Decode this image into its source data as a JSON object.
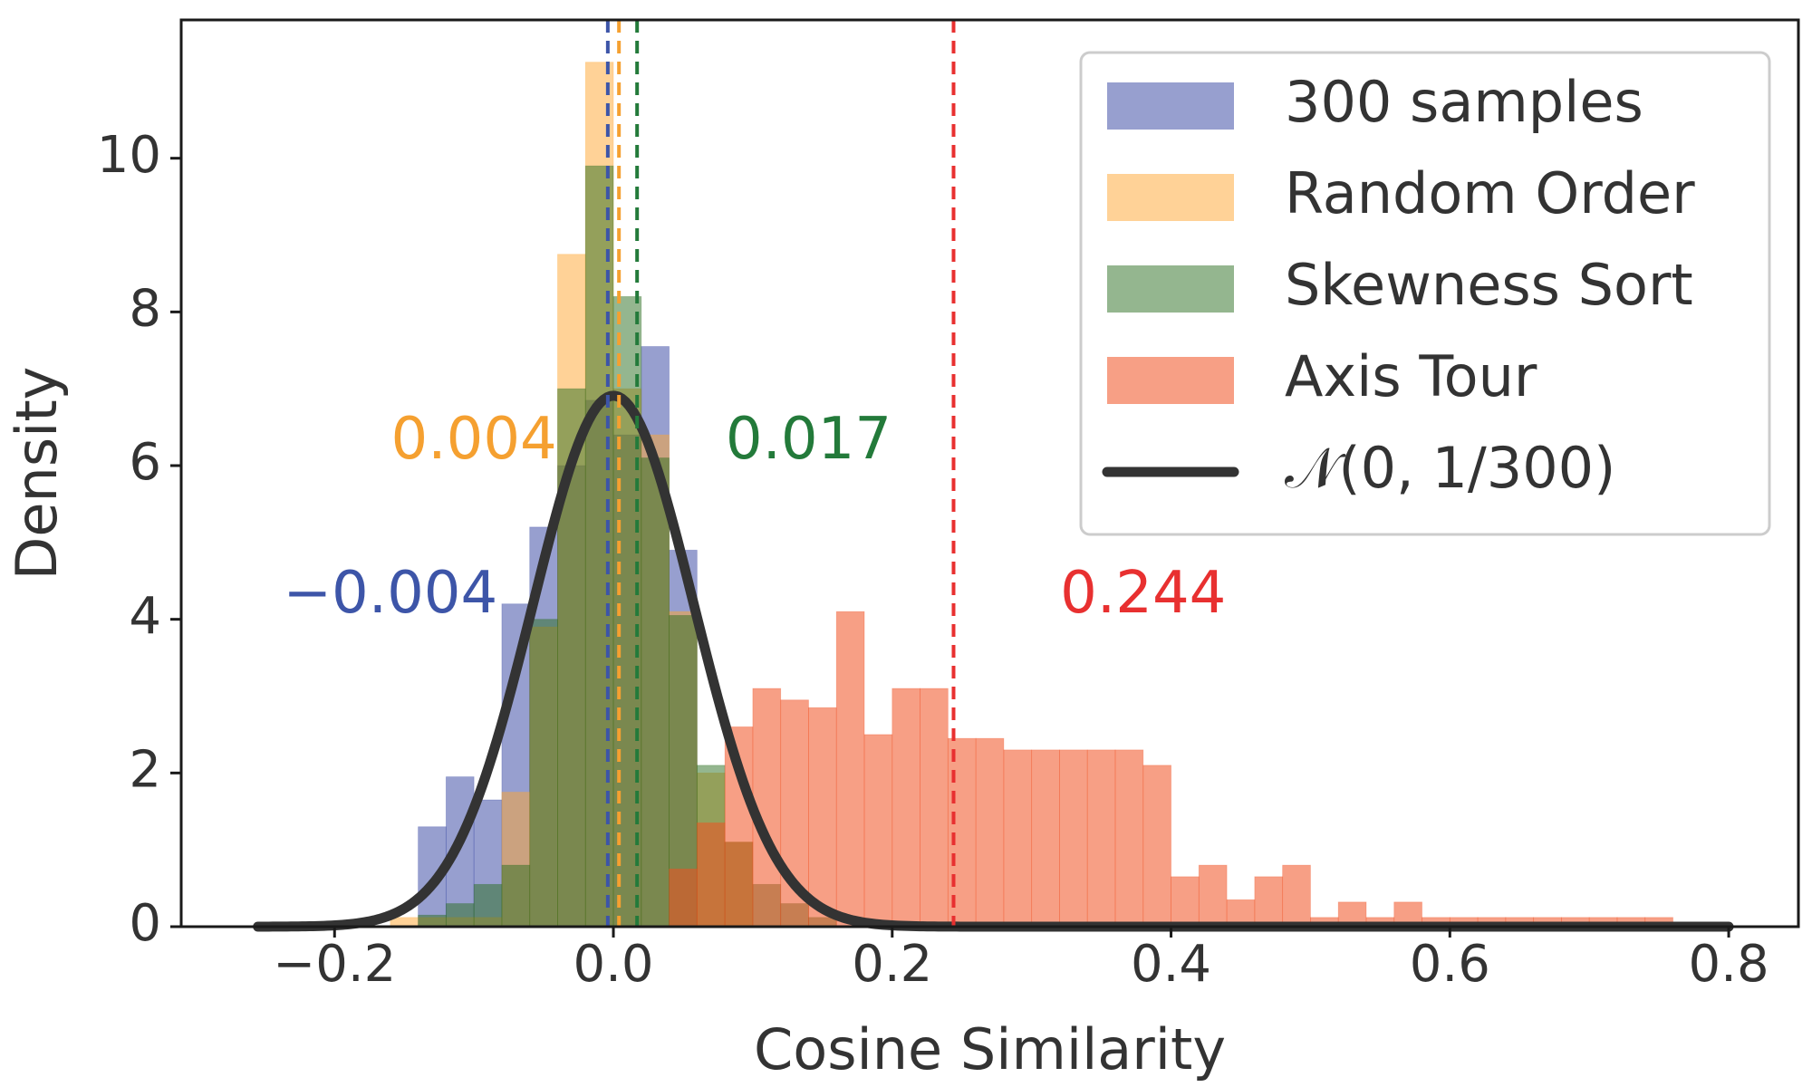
{
  "chart_data": {
    "type": "histogram",
    "title": "",
    "xlabel": "Cosine Similarity",
    "ylabel": "Density",
    "xlim": [
      -0.31,
      0.85
    ],
    "ylim": [
      0,
      11.8
    ],
    "xticks": [
      -0.2,
      0.0,
      0.2,
      0.4,
      0.6,
      0.8
    ],
    "xtick_labels": [
      "−0.2",
      "0.0",
      "0.2",
      "0.4",
      "0.6",
      "0.8"
    ],
    "yticks": [
      0,
      2,
      4,
      6,
      8,
      10
    ],
    "ytick_labels": [
      "0",
      "2",
      "4",
      "6",
      "8",
      "10"
    ],
    "grid": false,
    "legend_position": "top-right",
    "series": [
      {
        "name": "300 samples",
        "color": "#3040a0",
        "alpha": 0.5,
        "bins": [
          [
            -0.14,
            -0.12,
            1.3
          ],
          [
            -0.12,
            -0.1,
            1.95
          ],
          [
            -0.1,
            -0.08,
            1.65
          ],
          [
            -0.08,
            -0.06,
            4.2
          ],
          [
            -0.06,
            -0.04,
            5.2
          ],
          [
            -0.04,
            -0.02,
            6.0
          ],
          [
            -0.02,
            0.0,
            6.85
          ],
          [
            0.0,
            0.02,
            6.4
          ],
          [
            0.02,
            0.04,
            7.55
          ],
          [
            0.04,
            0.06,
            4.9
          ]
        ]
      },
      {
        "name": "Random Order",
        "color": "#ffa630",
        "alpha": 0.5,
        "bins": [
          [
            -0.16,
            -0.1,
            0.12
          ],
          [
            -0.1,
            -0.08,
            0.12
          ],
          [
            -0.08,
            -0.06,
            1.75
          ],
          [
            -0.06,
            -0.04,
            3.9
          ],
          [
            -0.04,
            -0.02,
            8.75
          ],
          [
            -0.02,
            0.0,
            11.25
          ],
          [
            0.0,
            0.02,
            7.0
          ],
          [
            0.02,
            0.04,
            6.4
          ],
          [
            0.04,
            0.06,
            4.1
          ],
          [
            0.06,
            0.08,
            2.0
          ],
          [
            0.08,
            0.1,
            1.1
          ]
        ]
      },
      {
        "name": "Skewness Sort",
        "color": "#2a6e1f",
        "alpha": 0.5,
        "bins": [
          [
            -0.14,
            -0.12,
            0.15
          ],
          [
            -0.12,
            -0.1,
            0.3
          ],
          [
            -0.1,
            -0.08,
            0.55
          ],
          [
            -0.08,
            -0.06,
            0.8
          ],
          [
            -0.06,
            -0.04,
            4.0
          ],
          [
            -0.04,
            -0.02,
            7.0
          ],
          [
            -0.02,
            0.0,
            9.9
          ],
          [
            0.0,
            0.02,
            8.2
          ],
          [
            0.02,
            0.04,
            6.1
          ],
          [
            0.04,
            0.06,
            4.05
          ],
          [
            0.06,
            0.08,
            2.1
          ],
          [
            0.08,
            0.1,
            1.1
          ],
          [
            0.1,
            0.12,
            0.55
          ],
          [
            0.12,
            0.14,
            0.3
          ],
          [
            0.14,
            0.16,
            0.12
          ]
        ]
      },
      {
        "name": "Axis Tour",
        "color": "#f05020",
        "alpha": 0.55,
        "bins": [
          [
            0.04,
            0.06,
            0.75
          ],
          [
            0.06,
            0.08,
            1.35
          ],
          [
            0.08,
            0.1,
            2.6
          ],
          [
            0.1,
            0.12,
            3.1
          ],
          [
            0.12,
            0.14,
            2.95
          ],
          [
            0.14,
            0.16,
            2.85
          ],
          [
            0.16,
            0.18,
            4.1
          ],
          [
            0.18,
            0.2,
            2.5
          ],
          [
            0.2,
            0.22,
            3.1
          ],
          [
            0.22,
            0.24,
            3.1
          ],
          [
            0.24,
            0.26,
            2.45
          ],
          [
            0.26,
            0.28,
            2.45
          ],
          [
            0.28,
            0.3,
            2.3
          ],
          [
            0.3,
            0.32,
            2.3
          ],
          [
            0.32,
            0.34,
            2.3
          ],
          [
            0.34,
            0.36,
            2.3
          ],
          [
            0.36,
            0.38,
            2.3
          ],
          [
            0.38,
            0.4,
            2.1
          ],
          [
            0.4,
            0.42,
            0.65
          ],
          [
            0.42,
            0.44,
            0.8
          ],
          [
            0.44,
            0.46,
            0.35
          ],
          [
            0.46,
            0.48,
            0.65
          ],
          [
            0.48,
            0.5,
            0.8
          ],
          [
            0.5,
            0.52,
            0.12
          ],
          [
            0.52,
            0.54,
            0.32
          ],
          [
            0.54,
            0.56,
            0.12
          ],
          [
            0.56,
            0.58,
            0.32
          ],
          [
            0.58,
            0.6,
            0.12
          ],
          [
            0.6,
            0.62,
            0.12
          ],
          [
            0.62,
            0.64,
            0.12
          ],
          [
            0.64,
            0.66,
            0.12
          ],
          [
            0.66,
            0.68,
            0.12
          ],
          [
            0.68,
            0.7,
            0.12
          ],
          [
            0.7,
            0.72,
            0.12
          ],
          [
            0.72,
            0.74,
            0.12
          ],
          [
            0.74,
            0.76,
            0.12
          ]
        ]
      }
    ],
    "normal_curve": {
      "name": "𝒩(0, 1/300)",
      "mean": 0,
      "variance": 0.0033333,
      "x_range": [
        -0.255,
        0.8
      ],
      "color": "#333333"
    },
    "mean_lines": [
      {
        "value": -0.004,
        "label": "−0.004",
        "color": "#3d55a8",
        "label_x": -0.16,
        "label_y": 4.3
      },
      {
        "value": 0.004,
        "label": "0.004",
        "color": "#f5a030",
        "label_x": -0.1,
        "label_y": 6.3
      },
      {
        "value": 0.017,
        "label": "0.017",
        "color": "#237a3a",
        "label_x": 0.14,
        "label_y": 6.3
      },
      {
        "value": 0.244,
        "label": "0.244",
        "color": "#e83030",
        "label_x": 0.38,
        "label_y": 4.3
      }
    ],
    "legend": [
      {
        "label": "300 samples",
        "kind": "patch",
        "color": "#3040a0",
        "alpha": 0.5
      },
      {
        "label": "Random Order",
        "kind": "patch",
        "color": "#ffa630",
        "alpha": 0.5
      },
      {
        "label": "Skewness Sort",
        "kind": "patch",
        "color": "#2a6e1f",
        "alpha": 0.5
      },
      {
        "label": "Axis Tour",
        "kind": "patch",
        "color": "#f05020",
        "alpha": 0.55
      },
      {
        "label": "𝒩(0, 1/300)",
        "kind": "line",
        "color": "#333333",
        "alpha": 1
      }
    ]
  }
}
